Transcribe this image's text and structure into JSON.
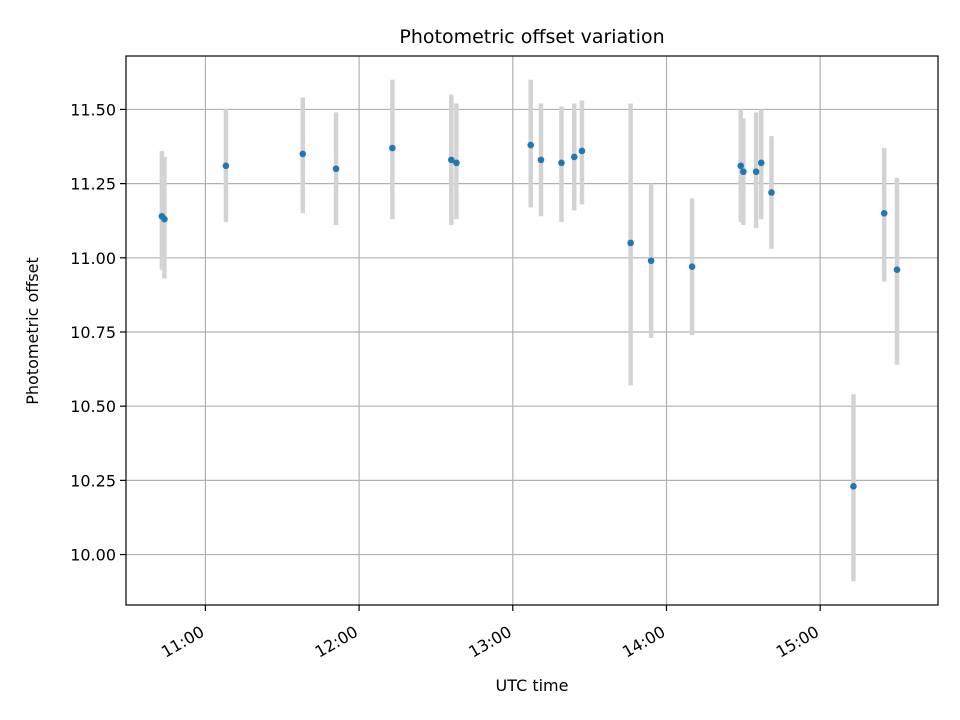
{
  "chart_data": {
    "type": "scatter",
    "title": "Photometric offset variation",
    "xlabel": "UTC time",
    "ylabel": "Photometric offset",
    "x_unit": "UTC time of day",
    "xlim": [
      "10:29",
      "15:46"
    ],
    "ylim": [
      9.83,
      11.68
    ],
    "xticks": [
      "11:00",
      "12:00",
      "13:00",
      "14:00",
      "15:00"
    ],
    "yticks": [
      "10.00",
      "10.25",
      "10.50",
      "10.75",
      "11.00",
      "11.25",
      "11.50"
    ],
    "grid": true,
    "colors": {
      "point": "#1f77b4",
      "errorbar": "#d3d3d3",
      "grid": "#b0b0b0"
    },
    "series": [
      {
        "points": [
          {
            "t": "10:43",
            "y": 11.14,
            "lo": 10.96,
            "hi": 11.36
          },
          {
            "t": "10:44",
            "y": 11.13,
            "lo": 10.93,
            "hi": 11.34
          },
          {
            "t": "11:08",
            "y": 11.31,
            "lo": 11.12,
            "hi": 11.5
          },
          {
            "t": "11:38",
            "y": 11.35,
            "lo": 11.15,
            "hi": 11.54
          },
          {
            "t": "11:51",
            "y": 11.3,
            "lo": 11.11,
            "hi": 11.49
          },
          {
            "t": "12:13",
            "y": 11.37,
            "lo": 11.13,
            "hi": 11.6
          },
          {
            "t": "12:36",
            "y": 11.33,
            "lo": 11.11,
            "hi": 11.55
          },
          {
            "t": "12:38",
            "y": 11.32,
            "lo": 11.13,
            "hi": 11.52
          },
          {
            "t": "13:07",
            "y": 11.38,
            "lo": 11.17,
            "hi": 11.6
          },
          {
            "t": "13:11",
            "y": 11.33,
            "lo": 11.14,
            "hi": 11.52
          },
          {
            "t": "13:19",
            "y": 11.32,
            "lo": 11.12,
            "hi": 11.51
          },
          {
            "t": "13:24",
            "y": 11.34,
            "lo": 11.16,
            "hi": 11.52
          },
          {
            "t": "13:27",
            "y": 11.36,
            "lo": 11.18,
            "hi": 11.53
          },
          {
            "t": "13:46",
            "y": 11.05,
            "lo": 10.57,
            "hi": 11.52
          },
          {
            "t": "13:54",
            "y": 10.99,
            "lo": 10.73,
            "hi": 11.25
          },
          {
            "t": "14:10",
            "y": 10.97,
            "lo": 10.74,
            "hi": 11.2
          },
          {
            "t": "14:29",
            "y": 11.31,
            "lo": 11.12,
            "hi": 11.5
          },
          {
            "t": "14:30",
            "y": 11.29,
            "lo": 11.11,
            "hi": 11.47
          },
          {
            "t": "14:35",
            "y": 11.29,
            "lo": 11.1,
            "hi": 11.49
          },
          {
            "t": "14:37",
            "y": 11.32,
            "lo": 11.13,
            "hi": 11.5
          },
          {
            "t": "14:41",
            "y": 11.22,
            "lo": 11.03,
            "hi": 11.41
          },
          {
            "t": "15:13",
            "y": 10.23,
            "lo": 9.91,
            "hi": 10.54
          },
          {
            "t": "15:25",
            "y": 11.15,
            "lo": 10.92,
            "hi": 11.37
          },
          {
            "t": "15:30",
            "y": 10.96,
            "lo": 10.64,
            "hi": 11.27
          }
        ]
      }
    ]
  }
}
